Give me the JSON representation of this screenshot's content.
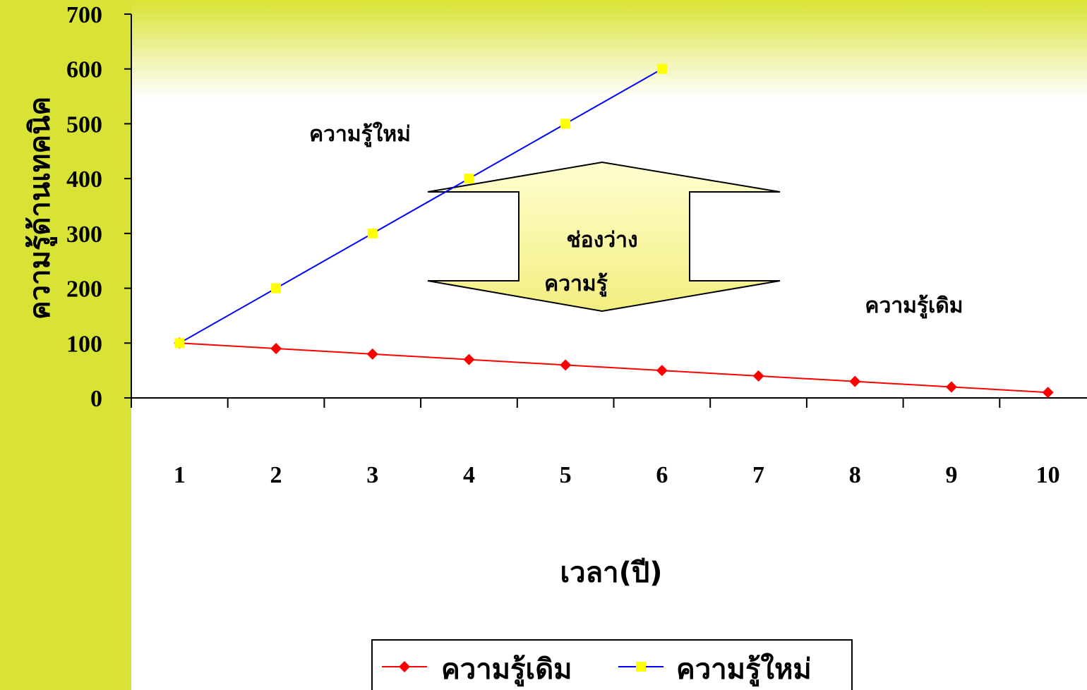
{
  "chart_data": {
    "type": "line",
    "ylabel": "ความรู้ด้านเทคนิค",
    "xlabel": "เวลา(ปี)",
    "categories": [
      "1",
      "2",
      "3",
      "4",
      "5",
      "6",
      "7",
      "8",
      "9",
      "10"
    ],
    "ylim": [
      0,
      700
    ],
    "yticks": [
      "0",
      "100",
      "200",
      "300",
      "400",
      "500",
      "600",
      "700"
    ],
    "grid": false,
    "legend_position": "bottom",
    "series": [
      {
        "name": "ความรู้เดิม",
        "values": [
          100,
          90,
          80,
          70,
          60,
          50,
          40,
          30,
          20,
          10
        ],
        "color": "#ff0000",
        "marker": "diamond"
      },
      {
        "name": "ความรู้ใหม่",
        "values": [
          100,
          200,
          300,
          400,
          500,
          600,
          null,
          null,
          null,
          null
        ],
        "color": "#0000ff",
        "marker": "square",
        "marker_color": "#ffff00"
      }
    ],
    "annotations": {
      "new_knowledge": "ความรู้ใหม่",
      "old_knowledge": "ความรู้เดิม",
      "gap_line1": "ช่องว่าง",
      "gap_line2": "ความรู้"
    }
  },
  "colors": {
    "sidebar": "#d9e335",
    "band_top": "#d9e335",
    "arrow_fill": "#f9f59a"
  }
}
